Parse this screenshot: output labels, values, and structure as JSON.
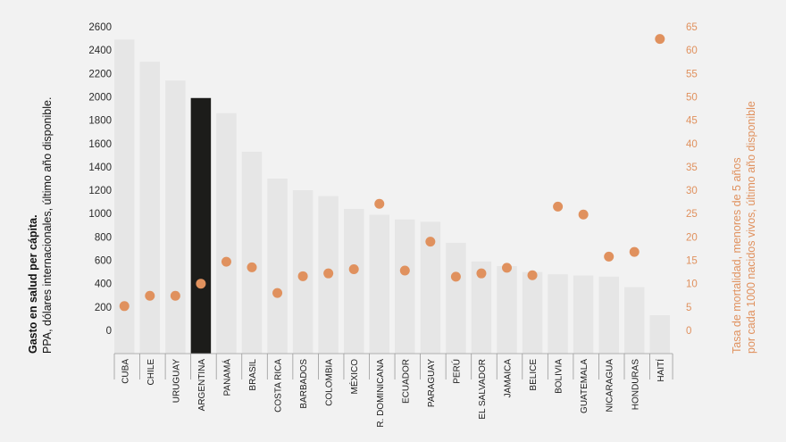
{
  "chart_data": {
    "type": "bar",
    "categories": [
      "CUBA",
      "CHILE",
      "URUGUAY",
      "ARGENTINA",
      "PANAMÁ",
      "BRASIL",
      "COSTA RICA",
      "BARBADOS",
      "COLOMBIA",
      "MÉXICO",
      "R. DOMINICANA",
      "ECUADOR",
      "PARAGUAY",
      "PERÚ",
      "EL SALVADOR",
      "JAMAICA",
      "BELICE",
      "BOLIVIA",
      "GUATEMALA",
      "NICARAGUA",
      "HONDURAS",
      "HAITÍ"
    ],
    "series": [
      {
        "name": "Gasto en salud per cápita",
        "axis": "left",
        "type": "bar",
        "values": [
          2490,
          2300,
          2140,
          1990,
          1860,
          1530,
          1300,
          1200,
          1150,
          1040,
          990,
          950,
          930,
          750,
          590,
          550,
          500,
          480,
          470,
          460,
          370,
          130
        ]
      },
      {
        "name": "Tasa de mortalidad, menores de 5 años",
        "axis": "right",
        "type": "scatter",
        "values": [
          5.2,
          7.4,
          7.4,
          10,
          14.7,
          13.5,
          8,
          11.6,
          12.2,
          13.1,
          27.1,
          12.8,
          19,
          11.5,
          12.2,
          13.4,
          11.8,
          26.5,
          24.8,
          15.8,
          16.8,
          62.4
        ]
      }
    ],
    "highlight_category": "ARGENTINA",
    "ylim_left": [
      0,
      2600
    ],
    "yticks_left": [
      0,
      200,
      400,
      600,
      800,
      1000,
      1200,
      1400,
      1600,
      1800,
      2000,
      2200,
      2400,
      2600
    ],
    "ylim_right": [
      0,
      65
    ],
    "yticks_right": [
      0,
      5,
      10,
      15,
      20,
      25,
      30,
      35,
      40,
      45,
      50,
      55,
      60,
      65
    ],
    "ylabel_left_bold": "Gasto en salud per cápita.",
    "ylabel_left": "PPA, dólares internacionales, último año disponible.",
    "ylabel_right_line1": "Tasa de mortalidad, menores de 5 años",
    "ylabel_right_line2": "por cada 1000 nacidos vivos, último año disponible",
    "colors": {
      "bar": "#e6e6e6",
      "highlight": "#1c1c1a",
      "dot": "#e0915e",
      "right_axis": "#e0915e"
    }
  }
}
